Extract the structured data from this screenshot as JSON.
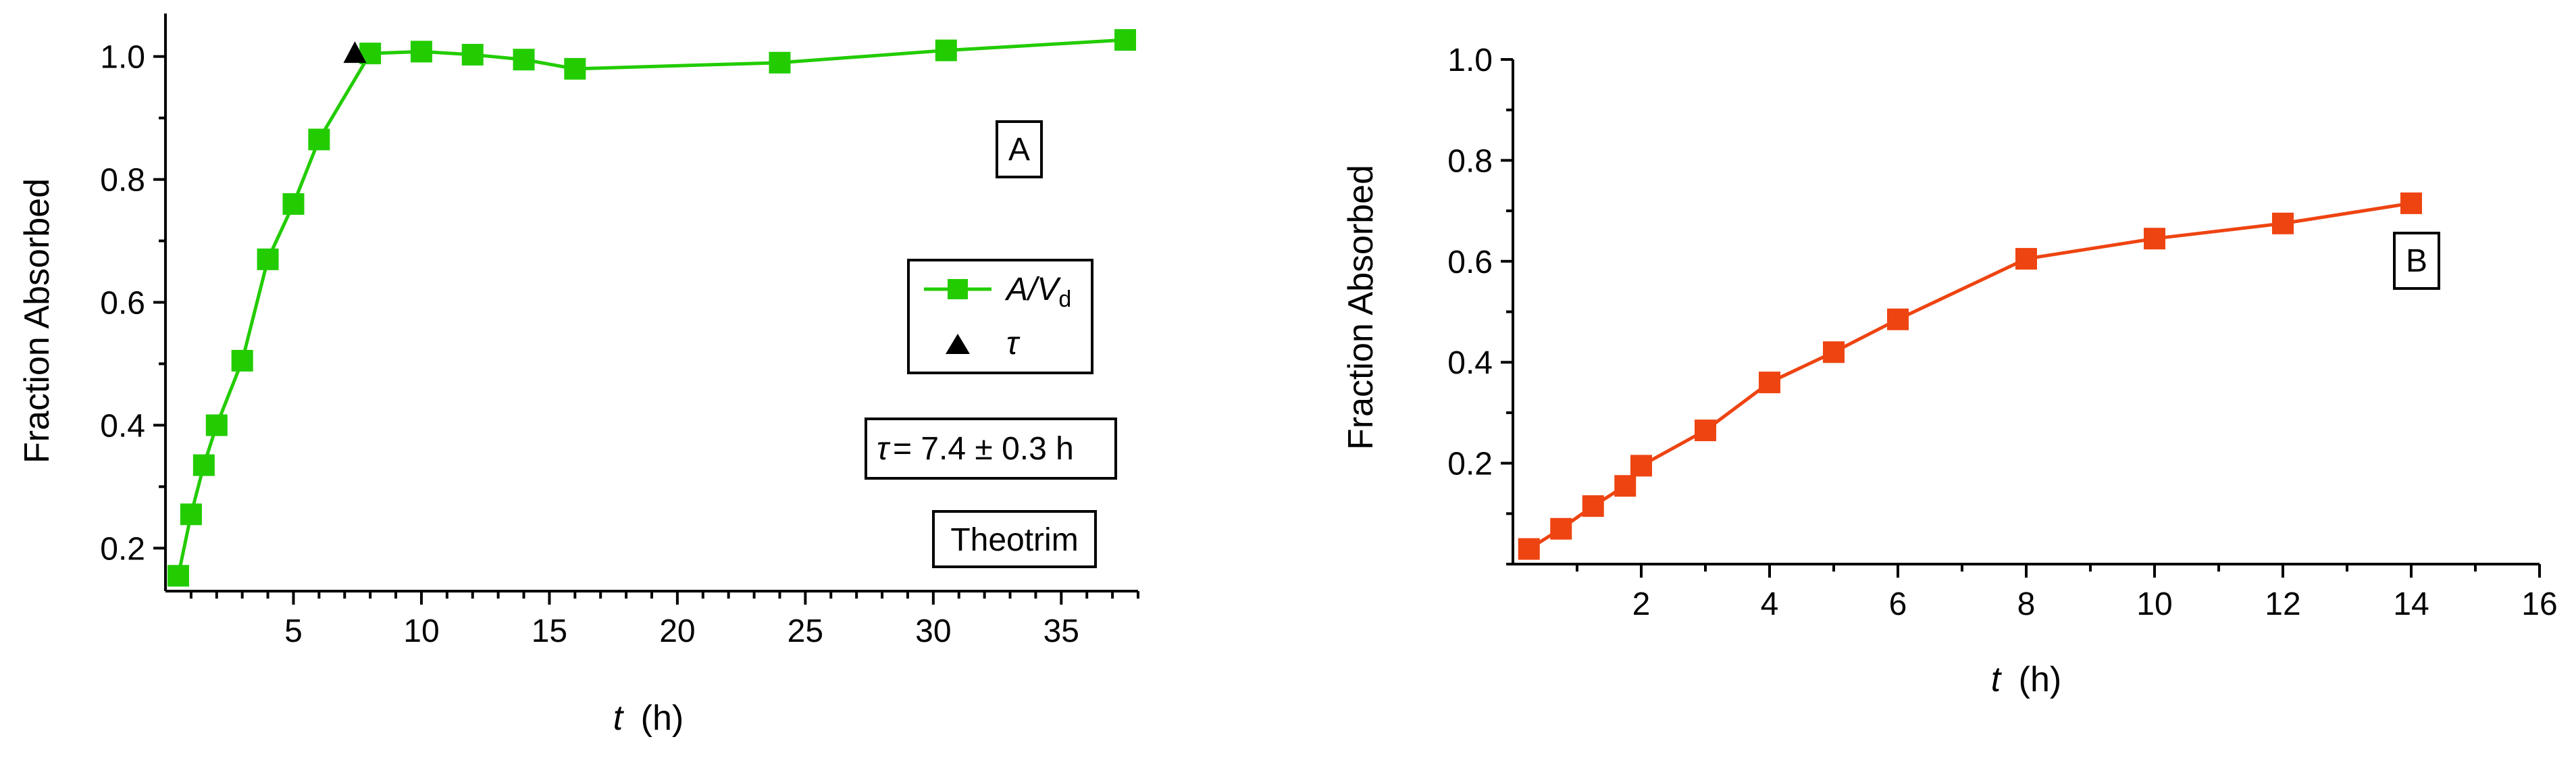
{
  "chart_data": [
    {
      "type": "line",
      "panel": "A",
      "xlabel_italic": "t",
      "xlabel_unit": "(h)",
      "ylabel": "Fraction Absorbed",
      "xlim": [
        0,
        38
      ],
      "ylim": [
        0.13,
        1.07
      ],
      "xticks": [
        5,
        10,
        15,
        20,
        25,
        30,
        35
      ],
      "yticks": [
        0.2,
        0.4,
        0.6,
        0.8,
        1.0
      ],
      "ytick_labels": [
        "0.2",
        "0.4",
        "0.6",
        "0.8",
        "1.0"
      ],
      "series": [
        {
          "name_italic": "A/V",
          "name_sub": "d",
          "color": "#22cc00",
          "marker": "square",
          "x": [
            0.5,
            1.0,
            1.5,
            2.0,
            3.0,
            4.0,
            5.0,
            6.0,
            8.0,
            10.0,
            12.0,
            14.0,
            16.0,
            24.0,
            30.5,
            37.5
          ],
          "y": [
            0.155,
            0.255,
            0.335,
            0.4,
            0.505,
            0.67,
            0.76,
            0.865,
            1.005,
            1.008,
            1.003,
            0.995,
            0.98,
            0.99,
            1.01,
            1.027
          ]
        },
        {
          "name_italic": "τ",
          "color": "#000000",
          "marker": "triangle",
          "x": [
            7.4
          ],
          "y": [
            1.005
          ]
        }
      ],
      "annotations": {
        "panel_label": "A",
        "tau_italic": "τ",
        "tau_text": "= 7.4 ± 0.3 h",
        "drug": "Theotrim"
      }
    },
    {
      "type": "line",
      "panel": "B",
      "xlabel_italic": "t",
      "xlabel_unit": "(h)",
      "ylabel": "Fraction Absorbed",
      "xlim": [
        0,
        16
      ],
      "ylim": [
        0,
        1.0
      ],
      "xticks": [
        2,
        4,
        6,
        8,
        10,
        12,
        14,
        16
      ],
      "yticks": [
        0.2,
        0.4,
        0.6,
        0.8,
        1.0
      ],
      "ytick_labels": [
        "0.2",
        "0.4",
        "0.6",
        "0.8",
        "1.0"
      ],
      "series": [
        {
          "color": "#ee4411",
          "marker": "square",
          "x": [
            0.25,
            0.75,
            1.25,
            1.75,
            2.0,
            3.0,
            4.0,
            5.0,
            6.0,
            8.0,
            10.0,
            12.0,
            14.0
          ],
          "y": [
            0.03,
            0.07,
            0.115,
            0.155,
            0.195,
            0.265,
            0.36,
            0.42,
            0.485,
            0.605,
            0.645,
            0.675,
            0.715
          ]
        }
      ],
      "annotations": {
        "panel_label": "B"
      }
    }
  ]
}
